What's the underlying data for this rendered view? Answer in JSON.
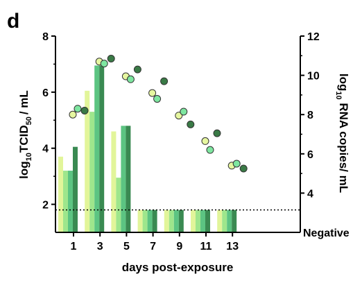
{
  "panel_label": "d",
  "chart_data": {
    "type": "bar",
    "xlabel": "days post-exposure",
    "ylabel_left": {
      "base": "log",
      "sub": "10",
      "main": "TCID",
      "sub2": "50",
      "tail": "/ mL"
    },
    "ylabel_right": {
      "base": "log",
      "sub": "10",
      "tail": " RNA copies/ mL"
    },
    "left_axis": {
      "ylim": [
        1,
        8
      ],
      "ticks": [
        "2",
        "4",
        "6",
        "8"
      ]
    },
    "right_axis": {
      "ylim": [
        2,
        12
      ],
      "ticks": [
        "4",
        "6",
        "8",
        "10",
        "12"
      ],
      "negative_label": "Negative"
    },
    "x_ticks": [
      "1",
      "3",
      "5",
      "7",
      "9",
      "11",
      "13"
    ],
    "detection_limit_left": 1.8,
    "bar_colors": [
      "#e2f59a",
      "#9ee68c",
      "#5cc482",
      "#3a8a52"
    ],
    "bars": [
      {
        "day": 1,
        "values": [
          3.7,
          3.2,
          3.2,
          4.05
        ]
      },
      {
        "day": 3,
        "values": [
          6.05,
          5.3,
          6.95,
          6.95
        ]
      },
      {
        "day": 5,
        "values": [
          4.6,
          2.95,
          4.8,
          4.8
        ]
      },
      {
        "day": 7,
        "values": [
          1.8,
          1.8,
          1.8,
          1.8
        ]
      },
      {
        "day": 9,
        "values": [
          1.8,
          1.8,
          1.8,
          1.8
        ]
      },
      {
        "day": 11,
        "values": [
          1.8,
          1.8,
          1.8,
          1.8
        ]
      },
      {
        "day": 13,
        "values": [
          1.8,
          1.8,
          1.8,
          1.8
        ]
      }
    ],
    "point_colors": [
      "#e6f7a0",
      "#7ee6a0",
      "#3a7a46"
    ],
    "points_right_axis": [
      {
        "day": 1,
        "values": [
          8.0,
          8.3,
          8.2
        ]
      },
      {
        "day": 3,
        "values": [
          10.7,
          10.6,
          10.85
        ]
      },
      {
        "day": 5,
        "values": [
          9.95,
          9.8,
          10.3
        ]
      },
      {
        "day": 7,
        "values": [
          9.1,
          8.8,
          9.7
        ]
      },
      {
        "day": 9,
        "values": [
          7.95,
          8.15,
          7.5
        ]
      },
      {
        "day": 11,
        "values": [
          6.65,
          6.2,
          7.05
        ]
      },
      {
        "day": 13,
        "values": [
          5.4,
          5.5,
          5.25
        ]
      }
    ]
  }
}
